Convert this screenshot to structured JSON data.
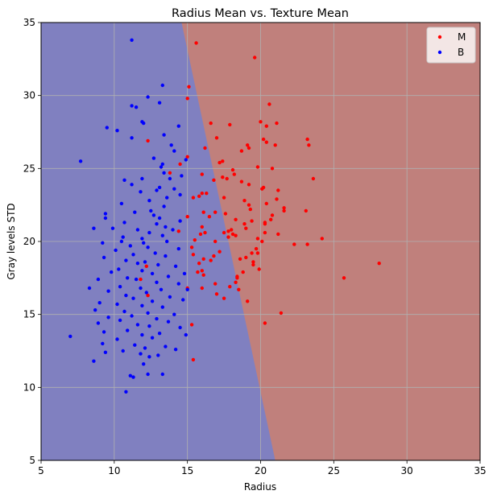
{
  "chart_data": {
    "type": "scatter",
    "title": "Radius Mean vs. Texture Mean",
    "xlabel": "Radius",
    "ylabel": "Gray levels STD",
    "xlim": [
      5,
      35
    ],
    "ylim": [
      5,
      35
    ],
    "xticks": [
      5,
      10,
      15,
      20,
      25,
      30,
      35
    ],
    "yticks": [
      5,
      10,
      15,
      20,
      25,
      30,
      35
    ],
    "grid": true,
    "legend_position": "top-right",
    "decision_regions": {
      "boundary": [
        [
          14.6,
          35
        ],
        [
          21.0,
          5
        ]
      ],
      "left_class": "B",
      "right_class": "M",
      "colors": {
        "B": "#8080c0",
        "M": "#c0807c"
      }
    },
    "series": [
      {
        "name": "M",
        "color": "#ff0000",
        "points": [
          [
            15.6,
            33.6
          ],
          [
            19.6,
            32.6
          ],
          [
            15.1,
            30.6
          ],
          [
            20.6,
            29.4
          ],
          [
            15.0,
            29.8
          ],
          [
            21.1,
            28.1
          ],
          [
            16.6,
            28.1
          ],
          [
            17.9,
            28.0
          ],
          [
            20.0,
            28.2
          ],
          [
            20.4,
            27.9
          ],
          [
            20.2,
            27.0
          ],
          [
            20.4,
            26.8
          ],
          [
            17.0,
            27.1
          ],
          [
            23.2,
            27.0
          ],
          [
            23.3,
            26.6
          ],
          [
            19.1,
            26.6
          ],
          [
            19.2,
            26.4
          ],
          [
            21.0,
            26.6
          ],
          [
            18.7,
            26.2
          ],
          [
            16.2,
            26.4
          ],
          [
            17.4,
            25.5
          ],
          [
            17.2,
            25.4
          ],
          [
            19.8,
            25.1
          ],
          [
            20.8,
            25.0
          ],
          [
            16.0,
            24.6
          ],
          [
            18.1,
            24.9
          ],
          [
            17.4,
            24.4
          ],
          [
            18.2,
            24.6
          ],
          [
            16.8,
            24.2
          ],
          [
            18.7,
            24.1
          ],
          [
            17.7,
            24.3
          ],
          [
            23.6,
            24.3
          ],
          [
            15.0,
            25.8
          ],
          [
            14.5,
            25.3
          ],
          [
            13.8,
            24.7
          ],
          [
            12.3,
            26.9
          ],
          [
            19.2,
            23.9
          ],
          [
            20.2,
            23.7
          ],
          [
            20.1,
            23.6
          ],
          [
            21.2,
            23.5
          ],
          [
            16.0,
            23.3
          ],
          [
            16.3,
            23.3
          ],
          [
            15.8,
            23.1
          ],
          [
            15.4,
            23.0
          ],
          [
            17.5,
            23.0
          ],
          [
            18.9,
            22.8
          ],
          [
            21.1,
            22.9
          ],
          [
            20.4,
            22.6
          ],
          [
            19.2,
            22.5
          ],
          [
            19.3,
            22.2
          ],
          [
            21.6,
            22.3
          ],
          [
            21.6,
            22.1
          ],
          [
            16.1,
            22.0
          ],
          [
            16.9,
            22.0
          ],
          [
            17.6,
            21.9
          ],
          [
            20.8,
            21.8
          ],
          [
            23.1,
            22.1
          ],
          [
            16.5,
            21.7
          ],
          [
            18.3,
            21.5
          ],
          [
            20.7,
            21.5
          ],
          [
            19.4,
            21.4
          ],
          [
            20.3,
            21.3
          ],
          [
            18.9,
            21.2
          ],
          [
            16.0,
            21.0
          ],
          [
            20.3,
            21.2
          ],
          [
            19.0,
            20.9
          ],
          [
            18.0,
            20.8
          ],
          [
            17.8,
            20.7
          ],
          [
            20.3,
            20.6
          ],
          [
            17.5,
            20.6
          ],
          [
            16.2,
            20.6
          ],
          [
            15.9,
            20.5
          ],
          [
            21.2,
            20.5
          ],
          [
            18.1,
            20.5
          ],
          [
            18.3,
            20.4
          ],
          [
            17.8,
            20.3
          ],
          [
            19.8,
            20.2
          ],
          [
            20.1,
            20.0
          ],
          [
            24.2,
            20.2
          ],
          [
            15.5,
            20.1
          ],
          [
            16.9,
            20.0
          ],
          [
            23.2,
            19.8
          ],
          [
            22.3,
            19.8
          ],
          [
            19.7,
            19.5
          ],
          [
            15.3,
            19.6
          ],
          [
            17.2,
            19.3
          ],
          [
            19.4,
            19.2
          ],
          [
            19.8,
            19.2
          ],
          [
            15.4,
            19.1
          ],
          [
            16.8,
            19.0
          ],
          [
            19.0,
            18.9
          ],
          [
            18.6,
            18.8
          ],
          [
            16.1,
            18.8
          ],
          [
            16.6,
            18.7
          ],
          [
            19.5,
            18.6
          ],
          [
            15.8,
            18.5
          ],
          [
            28.1,
            18.5
          ],
          [
            19.5,
            18.4
          ],
          [
            19.9,
            18.1
          ],
          [
            16.0,
            18.0
          ],
          [
            15.7,
            17.9
          ],
          [
            18.8,
            17.9
          ],
          [
            16.1,
            17.7
          ],
          [
            18.4,
            17.6
          ],
          [
            18.4,
            17.5
          ],
          [
            25.7,
            17.5
          ],
          [
            18.3,
            17.2
          ],
          [
            17.9,
            16.9
          ],
          [
            16.9,
            17.1
          ],
          [
            16.0,
            16.8
          ],
          [
            15.0,
            16.8
          ],
          [
            18.5,
            16.7
          ],
          [
            17.0,
            16.4
          ],
          [
            17.5,
            16.1
          ],
          [
            19.1,
            15.9
          ],
          [
            21.4,
            15.1
          ],
          [
            15.3,
            14.3
          ],
          [
            20.3,
            14.4
          ],
          [
            15.4,
            11.9
          ],
          [
            12.3,
            16.3
          ],
          [
            12.2,
            18.3
          ],
          [
            11.8,
            17.4
          ],
          [
            14.4,
            20.7
          ],
          [
            15.0,
            21.7
          ]
        ]
      },
      {
        "name": "B",
        "color": "#0000ff",
        "points": [
          [
            11.2,
            33.8
          ],
          [
            13.3,
            30.7
          ],
          [
            12.3,
            29.9
          ],
          [
            13.1,
            29.5
          ],
          [
            11.2,
            29.3
          ],
          [
            11.5,
            29.2
          ],
          [
            11.9,
            28.2
          ],
          [
            12.0,
            28.1
          ],
          [
            9.5,
            27.8
          ],
          [
            10.2,
            27.6
          ],
          [
            13.4,
            27.3
          ],
          [
            14.4,
            27.9
          ],
          [
            11.2,
            27.1
          ],
          [
            13.9,
            26.6
          ],
          [
            14.1,
            26.2
          ],
          [
            12.7,
            25.7
          ],
          [
            14.9,
            25.6
          ],
          [
            7.7,
            25.5
          ],
          [
            13.3,
            25.3
          ],
          [
            13.2,
            25.1
          ],
          [
            13.4,
            24.7
          ],
          [
            14.6,
            24.5
          ],
          [
            13.8,
            24.3
          ],
          [
            11.9,
            24.3
          ],
          [
            11.2,
            23.9
          ],
          [
            10.7,
            24.2
          ],
          [
            13.1,
            23.7
          ],
          [
            14.1,
            23.6
          ],
          [
            12.9,
            23.5
          ],
          [
            11.8,
            23.4
          ],
          [
            14.5,
            23.2
          ],
          [
            13.6,
            23.0
          ],
          [
            12.4,
            22.8
          ],
          [
            10.5,
            22.6
          ],
          [
            13.4,
            22.4
          ],
          [
            12.5,
            22.1
          ],
          [
            11.4,
            22.0
          ],
          [
            9.4,
            21.9
          ],
          [
            12.7,
            21.8
          ],
          [
            13.1,
            21.6
          ],
          [
            9.4,
            21.6
          ],
          [
            10.7,
            21.3
          ],
          [
            14.5,
            21.4
          ],
          [
            12.9,
            21.2
          ],
          [
            13.5,
            21.0
          ],
          [
            9.9,
            20.9
          ],
          [
            11.6,
            20.8
          ],
          [
            8.6,
            20.9
          ],
          [
            14.0,
            20.8
          ],
          [
            12.4,
            20.6
          ],
          [
            13.3,
            20.4
          ],
          [
            10.6,
            20.3
          ],
          [
            11.9,
            20.2
          ],
          [
            10.5,
            20.0
          ],
          [
            13.6,
            20.0
          ],
          [
            9.2,
            19.9
          ],
          [
            11.1,
            19.7
          ],
          [
            12.3,
            19.6
          ],
          [
            14.4,
            19.5
          ],
          [
            10.1,
            19.4
          ],
          [
            12.8,
            19.2
          ],
          [
            11.3,
            19.1
          ],
          [
            13.5,
            19.0
          ],
          [
            9.3,
            18.9
          ],
          [
            10.8,
            18.7
          ],
          [
            12.1,
            18.6
          ],
          [
            11.6,
            18.5
          ],
          [
            13.0,
            18.4
          ],
          [
            14.2,
            18.3
          ],
          [
            10.3,
            18.1
          ],
          [
            11.9,
            18.0
          ],
          [
            9.8,
            17.9
          ],
          [
            12.6,
            17.8
          ],
          [
            13.7,
            17.6
          ],
          [
            10.9,
            17.5
          ],
          [
            11.5,
            17.4
          ],
          [
            8.9,
            17.4
          ],
          [
            12.9,
            17.2
          ],
          [
            14.4,
            17.1
          ],
          [
            10.4,
            16.9
          ],
          [
            11.8,
            16.8
          ],
          [
            13.2,
            16.7
          ],
          [
            8.3,
            16.8
          ],
          [
            9.6,
            16.6
          ],
          [
            12.2,
            16.5
          ],
          [
            10.8,
            16.3
          ],
          [
            13.8,
            16.2
          ],
          [
            11.3,
            16.1
          ],
          [
            14.7,
            16.0
          ],
          [
            12.6,
            15.9
          ],
          [
            9.0,
            15.8
          ],
          [
            10.2,
            15.7
          ],
          [
            11.9,
            15.6
          ],
          [
            13.3,
            15.5
          ],
          [
            8.7,
            15.3
          ],
          [
            10.7,
            15.2
          ],
          [
            12.3,
            15.1
          ],
          [
            14.1,
            15.0
          ],
          [
            11.2,
            14.9
          ],
          [
            9.6,
            14.8
          ],
          [
            12.9,
            14.7
          ],
          [
            10.4,
            14.6
          ],
          [
            13.7,
            14.5
          ],
          [
            8.9,
            14.4
          ],
          [
            11.6,
            14.3
          ],
          [
            12.4,
            14.2
          ],
          [
            14.5,
            14.1
          ],
          [
            10.9,
            13.9
          ],
          [
            9.3,
            13.8
          ],
          [
            13.1,
            13.7
          ],
          [
            11.9,
            13.6
          ],
          [
            14.9,
            13.6
          ],
          [
            12.6,
            13.4
          ],
          [
            10.2,
            13.3
          ],
          [
            7.0,
            13.5
          ],
          [
            9.2,
            13.0
          ],
          [
            11.4,
            12.9
          ],
          [
            13.5,
            12.8
          ],
          [
            12.1,
            12.7
          ],
          [
            14.2,
            12.6
          ],
          [
            10.6,
            12.5
          ],
          [
            9.4,
            12.4
          ],
          [
            11.8,
            12.3
          ],
          [
            13.0,
            12.2
          ],
          [
            12.4,
            12.1
          ],
          [
            8.6,
            11.8
          ],
          [
            12.0,
            11.6
          ],
          [
            11.1,
            10.8
          ],
          [
            12.3,
            10.9
          ],
          [
            11.3,
            10.7
          ],
          [
            13.3,
            10.9
          ],
          [
            10.8,
            9.7
          ],
          [
            15.0,
            16.7
          ],
          [
            14.8,
            17.8
          ],
          [
            12.0,
            19.9
          ]
        ]
      }
    ]
  }
}
